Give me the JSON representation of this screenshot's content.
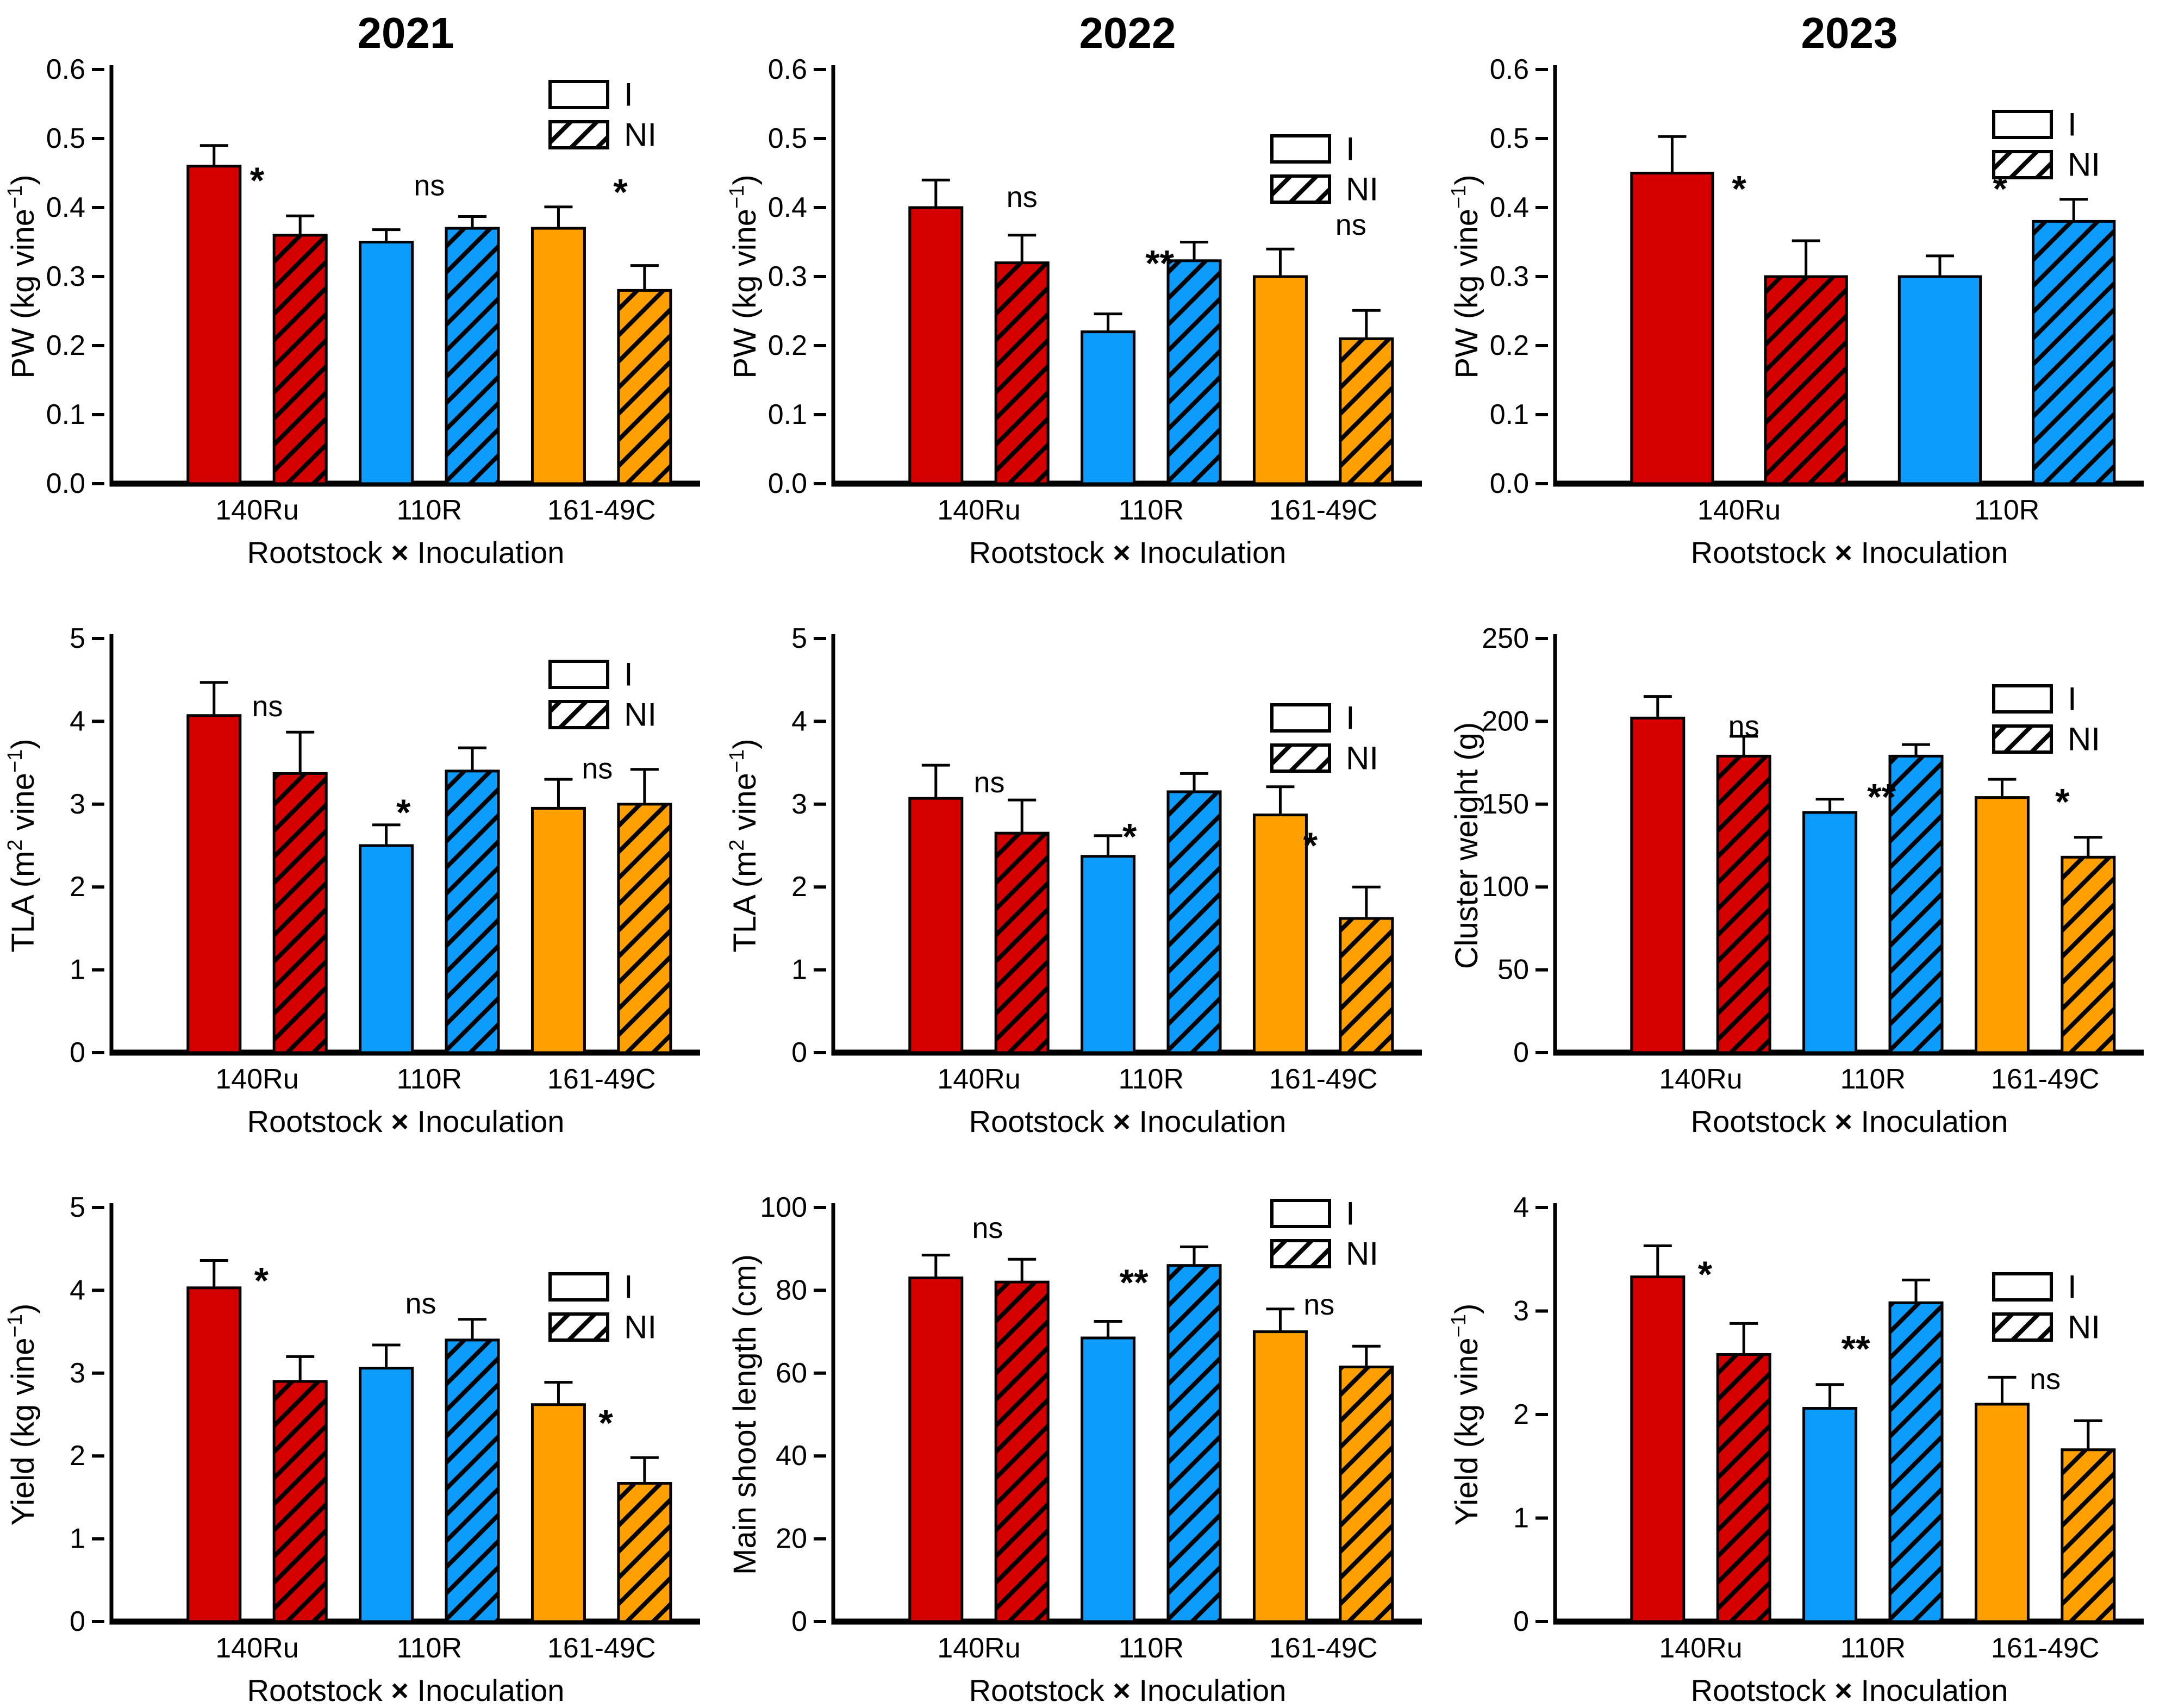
{
  "figure": {
    "background": "#FFFFFF",
    "year_columns": [
      "2021",
      "2022",
      "2023"
    ]
  },
  "colors": {
    "red": "#D40000",
    "blue": "#0D9CFC",
    "orange": "#FFA000",
    "axis": "#000000",
    "text": "#000000",
    "hatch": "#000000",
    "legend_box_fill": "#FFFFFF"
  },
  "legend": {
    "items": [
      {
        "key": "I",
        "label": "I",
        "hatched": false
      },
      {
        "key": "NI",
        "label": "NI",
        "hatched": true
      }
    ]
  },
  "xlabel_segments": [
    {
      "t": "Rootstock "
    },
    {
      "t": "×",
      "bold": true
    },
    {
      "t": " Inoculation"
    }
  ],
  "rootstocks": [
    "140Ru",
    "110R",
    "161-49C"
  ],
  "chart_data": [
    {
      "id": "pw-2021",
      "type": "bar",
      "row": 0,
      "col": 0,
      "title": "2021",
      "ylabel_segments": [
        {
          "t": "PW (kg vine"
        },
        {
          "t": "−1",
          "sup": true
        },
        {
          "t": ")"
        }
      ],
      "ylim": [
        0,
        0.6
      ],
      "ystep": 0.1,
      "ydecimals": 1,
      "groups": [
        "140Ru",
        "110R",
        "161-49C"
      ],
      "group_colors": [
        "red",
        "blue",
        "orange"
      ],
      "series": [
        {
          "name": "I",
          "values": [
            0.46,
            0.35,
            0.37
          ],
          "errors": [
            0.03,
            0.018,
            0.031
          ]
        },
        {
          "name": "NI",
          "values": [
            0.36,
            0.37,
            0.28
          ],
          "errors": [
            0.028,
            0.017,
            0.036
          ]
        }
      ],
      "annotations": [
        {
          "text": "*",
          "bar": 0.5,
          "y": 0.455
        },
        {
          "text": "ns",
          "bar": 2.5,
          "y": 0.432
        },
        {
          "text": "*",
          "bar": 4.72,
          "y": 0.438
        }
      ],
      "legend_y": 150
    },
    {
      "id": "pw-2022",
      "type": "bar",
      "row": 0,
      "col": 1,
      "title": "2022",
      "ylabel_segments": [
        {
          "t": "PW (kg vine"
        },
        {
          "t": "−1",
          "sup": true
        },
        {
          "t": ")"
        }
      ],
      "ylim": [
        0,
        0.6
      ],
      "ystep": 0.1,
      "ydecimals": 1,
      "groups": [
        "140Ru",
        "110R",
        "161-49C"
      ],
      "group_colors": [
        "red",
        "blue",
        "orange"
      ],
      "series": [
        {
          "name": "I",
          "values": [
            0.4,
            0.22,
            0.3
          ],
          "errors": [
            0.04,
            0.026,
            0.04
          ]
        },
        {
          "name": "NI",
          "values": [
            0.32,
            0.323,
            0.21
          ],
          "errors": [
            0.04,
            0.027,
            0.041
          ]
        }
      ],
      "annotations": [
        {
          "text": "ns",
          "bar": 1.0,
          "y": 0.415
        },
        {
          "text": "**",
          "bar": 2.6,
          "y": 0.335
        },
        {
          "text": "ns",
          "bar": 4.82,
          "y": 0.375
        }
      ],
      "legend_y": 250
    },
    {
      "id": "pw-2023",
      "type": "bar",
      "row": 0,
      "col": 2,
      "title": "2023",
      "ylabel_segments": [
        {
          "t": "PW (kg vine"
        },
        {
          "t": "−1",
          "sup": true
        },
        {
          "t": ")"
        }
      ],
      "ylim": [
        0,
        0.6
      ],
      "ystep": 0.1,
      "ydecimals": 1,
      "groups": [
        "140Ru",
        "110R"
      ],
      "group_colors": [
        "red",
        "blue"
      ],
      "series": [
        {
          "name": "I",
          "values": [
            0.45,
            0.3
          ],
          "errors": [
            0.053,
            0.03
          ]
        },
        {
          "name": "NI",
          "values": [
            0.3,
            0.38
          ],
          "errors": [
            0.052,
            0.032
          ]
        }
      ],
      "annotations": [
        {
          "text": "*",
          "bar": 0.5,
          "y": 0.443
        },
        {
          "text": "*",
          "bar": 2.45,
          "y": 0.443
        }
      ],
      "legend_y": 205
    },
    {
      "id": "tla-2021",
      "type": "bar",
      "row": 1,
      "col": 0,
      "title": null,
      "ylabel_segments": [
        {
          "t": "TLA (m"
        },
        {
          "t": "2",
          "sup": true
        },
        {
          "t": " vine"
        },
        {
          "t": "−1",
          "sup": true
        },
        {
          "t": ")"
        }
      ],
      "ylim": [
        0,
        5
      ],
      "ystep": 1,
      "ydecimals": 0,
      "groups": [
        "140Ru",
        "110R",
        "161-49C"
      ],
      "group_colors": [
        "red",
        "blue",
        "orange"
      ],
      "series": [
        {
          "name": "I",
          "values": [
            4.07,
            2.5,
            2.95
          ],
          "errors": [
            0.4,
            0.25,
            0.35
          ]
        },
        {
          "name": "NI",
          "values": [
            3.37,
            3.4,
            3.0
          ],
          "errors": [
            0.5,
            0.28,
            0.42
          ]
        }
      ],
      "annotations": [
        {
          "text": "ns",
          "bar": 0.62,
          "y": 4.18
        },
        {
          "text": "*",
          "bar": 2.2,
          "y": 3.03
        },
        {
          "text": "ns",
          "bar": 4.45,
          "y": 3.43
        }
      ],
      "legend_y": 170
    },
    {
      "id": "tla-2022",
      "type": "bar",
      "row": 1,
      "col": 1,
      "title": null,
      "ylabel_segments": [
        {
          "t": "TLA (m"
        },
        {
          "t": "2",
          "sup": true
        },
        {
          "t": " vine"
        },
        {
          "t": "−1",
          "sup": true
        },
        {
          "t": ")"
        }
      ],
      "ylim": [
        0,
        5
      ],
      "ystep": 1,
      "ydecimals": 0,
      "groups": [
        "140Ru",
        "110R",
        "161-49C"
      ],
      "group_colors": [
        "red",
        "blue",
        "orange"
      ],
      "series": [
        {
          "name": "I",
          "values": [
            3.07,
            2.37,
            2.87
          ],
          "errors": [
            0.4,
            0.25,
            0.34
          ]
        },
        {
          "name": "NI",
          "values": [
            2.65,
            3.15,
            1.62
          ],
          "errors": [
            0.4,
            0.22,
            0.38
          ]
        }
      ],
      "annotations": [
        {
          "text": "ns",
          "bar": 0.62,
          "y": 3.26
        },
        {
          "text": "*",
          "bar": 2.25,
          "y": 2.74
        },
        {
          "text": "*",
          "bar": 4.35,
          "y": 2.63
        }
      ],
      "legend_y": 250
    },
    {
      "id": "cluster-weight-2023",
      "type": "bar",
      "row": 1,
      "col": 2,
      "title": null,
      "ylabel_segments": [
        {
          "t": "Cluster weight (g)"
        }
      ],
      "ylim": [
        0,
        250
      ],
      "ystep": 50,
      "ydecimals": 0,
      "groups": [
        "140Ru",
        "110R",
        "161-49C"
      ],
      "group_colors": [
        "red",
        "blue",
        "orange"
      ],
      "series": [
        {
          "name": "I",
          "values": [
            202,
            145,
            154
          ],
          "errors": [
            13,
            8,
            11
          ]
        },
        {
          "name": "NI",
          "values": [
            179,
            179,
            118
          ],
          "errors": [
            12,
            7,
            12
          ]
        }
      ],
      "annotations": [
        {
          "text": "ns",
          "bar": 1.0,
          "y": 197
        },
        {
          "text": "**",
          "bar": 2.6,
          "y": 161
        },
        {
          "text": "*",
          "bar": 4.7,
          "y": 158
        }
      ],
      "legend_y": 215
    },
    {
      "id": "yield-2021",
      "type": "bar",
      "row": 2,
      "col": 0,
      "title": null,
      "ylabel_segments": [
        {
          "t": "Yield (kg vine"
        },
        {
          "t": "−1",
          "sup": true
        },
        {
          "t": ")"
        }
      ],
      "ylim": [
        0,
        5
      ],
      "ystep": 1,
      "ydecimals": 0,
      "groups": [
        "140Ru",
        "110R",
        "161-49C"
      ],
      "group_colors": [
        "red",
        "blue",
        "orange"
      ],
      "series": [
        {
          "name": "I",
          "values": [
            4.03,
            3.06,
            2.62
          ],
          "errors": [
            0.33,
            0.28,
            0.27
          ]
        },
        {
          "name": "NI",
          "values": [
            2.9,
            3.4,
            1.67
          ],
          "errors": [
            0.3,
            0.25,
            0.31
          ]
        }
      ],
      "annotations": [
        {
          "text": "*",
          "bar": 0.55,
          "y": 4.25
        },
        {
          "text": "ns",
          "bar": 2.4,
          "y": 3.84
        },
        {
          "text": "*",
          "bar": 4.55,
          "y": 2.53
        }
      ],
      "legend_y": 250
    },
    {
      "id": "main-shoot-length-2022",
      "type": "bar",
      "row": 2,
      "col": 1,
      "title": null,
      "ylabel_segments": [
        {
          "t": "Main shoot length (cm)"
        }
      ],
      "ylim": [
        0,
        100
      ],
      "ystep": 20,
      "ydecimals": 0,
      "groups": [
        "140Ru",
        "110R",
        "161-49C"
      ],
      "group_colors": [
        "red",
        "blue",
        "orange"
      ],
      "series": [
        {
          "name": "I",
          "values": [
            83,
            68.5,
            70
          ],
          "errors": [
            5.5,
            4,
            5.5
          ]
        },
        {
          "name": "NI",
          "values": [
            82,
            86,
            61.5
          ],
          "errors": [
            5.5,
            4.5,
            5
          ]
        }
      ],
      "annotations": [
        {
          "text": "ns",
          "bar": 0.6,
          "y": 95
        },
        {
          "text": "**",
          "bar": 2.3,
          "y": 84.5
        },
        {
          "text": "ns",
          "bar": 4.45,
          "y": 76.5
        }
      ],
      "legend_y": 115
    },
    {
      "id": "yield-2023",
      "type": "bar",
      "row": 2,
      "col": 2,
      "title": null,
      "ylabel_segments": [
        {
          "t": "Yield (kg vine"
        },
        {
          "t": "−1",
          "sup": true
        },
        {
          "t": ")"
        }
      ],
      "ylim": [
        0,
        4
      ],
      "ystep": 1,
      "ydecimals": 0,
      "groups": [
        "140Ru",
        "110R",
        "161-49C"
      ],
      "group_colors": [
        "red",
        "blue",
        "orange"
      ],
      "series": [
        {
          "name": "I",
          "values": [
            3.33,
            2.06,
            2.1
          ],
          "errors": [
            0.3,
            0.23,
            0.26
          ]
        },
        {
          "name": "NI",
          "values": [
            2.58,
            3.08,
            1.66
          ],
          "errors": [
            0.3,
            0.22,
            0.28
          ]
        }
      ],
      "annotations": [
        {
          "text": "*",
          "bar": 0.55,
          "y": 3.46
        },
        {
          "text": "**",
          "bar": 2.3,
          "y": 2.74
        },
        {
          "text": "ns",
          "bar": 4.5,
          "y": 2.34
        }
      ],
      "legend_y": 250
    }
  ]
}
